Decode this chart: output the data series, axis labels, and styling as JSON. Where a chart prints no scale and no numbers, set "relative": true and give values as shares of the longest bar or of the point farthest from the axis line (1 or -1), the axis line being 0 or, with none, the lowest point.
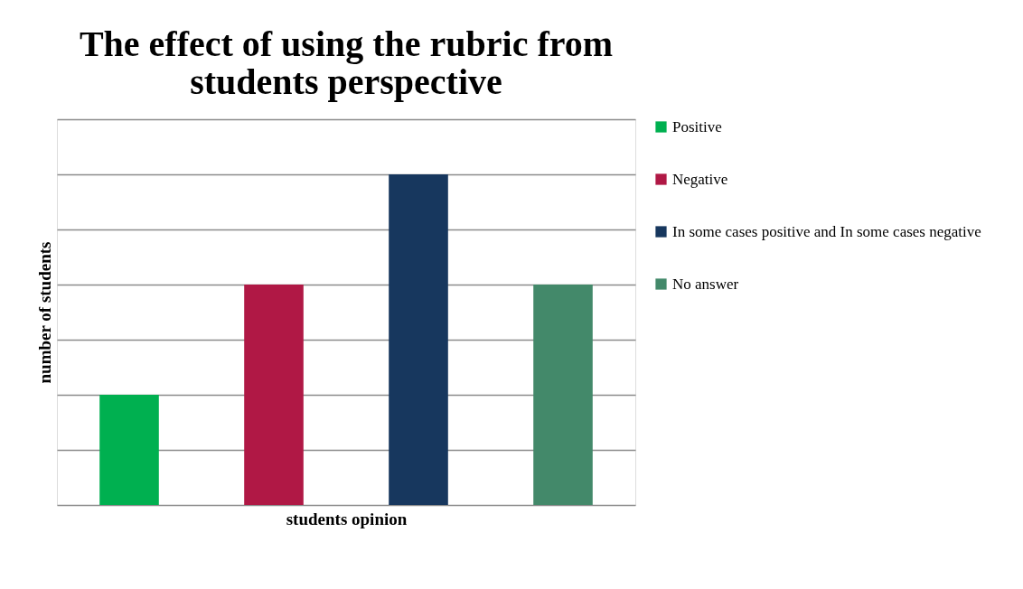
{
  "chart_data": {
    "type": "bar",
    "stacked": true,
    "title": "The effect of using the rubric from students perspective",
    "xlabel": "students opinion",
    "ylabel": "number of students",
    "relative": true,
    "grid": "y",
    "legend": "right",
    "categories": [
      null,
      null,
      null,
      null
    ],
    "series": [
      {
        "name": "Positive",
        "color": "#00b050",
        "values": [
          0.3333,
          null,
          null,
          null
        ]
      },
      {
        "name": "Negative",
        "color": "#b01845",
        "values": [
          null,
          0.6667,
          null,
          null
        ]
      },
      {
        "name": "In some cases positive and In some cases negative",
        "color": "#17375e",
        "values": [
          null,
          null,
          1,
          null
        ]
      },
      {
        "name": "No answer",
        "color": "#43896a",
        "values": [
          null,
          null,
          null,
          0.6667
        ]
      }
    ]
  }
}
